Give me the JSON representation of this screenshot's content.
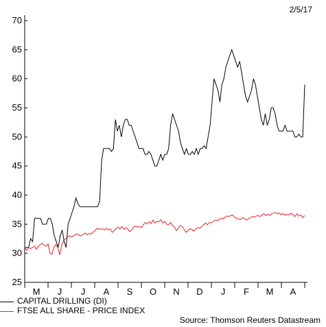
{
  "date_label": "2/5/17",
  "source_label": "Source: Thomson Reuters Datastream",
  "chart_data": {
    "type": "line",
    "ylim": [
      25,
      70
    ],
    "yticks": [
      25,
      30,
      35,
      40,
      45,
      50,
      55,
      60,
      65,
      70
    ],
    "months": [
      "M",
      "J",
      "J",
      "A",
      "S",
      "O",
      "N",
      "D",
      "J",
      "F",
      "M",
      "A"
    ],
    "legend_position": "bottom-left",
    "grid": false,
    "series": [
      {
        "name": "CAPITAL DRILLING (DI)",
        "color": "#000000",
        "values": [
          31,
          31,
          31,
          32.5,
          32,
          36,
          36,
          36,
          36,
          35,
          35,
          35,
          36,
          36,
          35,
          33,
          32,
          31,
          33,
          34,
          32,
          31,
          35,
          36,
          37,
          38,
          39.5,
          38.5,
          38,
          38,
          38,
          38,
          38,
          38,
          38,
          38,
          38,
          38,
          39,
          46,
          48,
          48,
          48,
          48,
          47.5,
          48,
          53,
          51,
          52,
          50,
          52,
          53,
          53,
          52,
          52,
          51,
          50,
          49,
          48,
          48,
          48,
          47,
          47,
          47.5,
          47,
          46,
          45,
          45,
          46,
          47,
          46,
          47,
          47,
          48,
          52,
          54,
          53,
          52,
          51,
          49,
          48,
          47,
          48,
          47,
          47,
          47.5,
          47,
          48,
          47,
          48,
          48,
          48.5,
          48,
          50,
          52,
          56,
          60,
          59,
          58,
          56,
          59,
          60,
          62,
          63,
          64,
          65,
          64,
          63,
          62,
          63,
          61,
          59,
          57,
          56,
          57,
          58,
          60,
          59,
          57,
          55,
          53,
          52,
          54,
          52,
          53,
          55,
          55,
          54,
          52,
          51,
          51,
          51,
          52,
          51,
          51,
          51,
          51,
          50,
          50,
          50.5,
          50,
          50,
          59
        ],
        "x_start_index": 0
      },
      {
        "name": "FTSE ALL SHARE - PRICE INDEX",
        "color": "#e8202a",
        "values": [
          31,
          30.5,
          31,
          30.8,
          31,
          31.2,
          30.7,
          31.2,
          31.5,
          31.7,
          31.4,
          31.2,
          31.6,
          30,
          29.8,
          31,
          31.5,
          31,
          29.7,
          31.4,
          32.2,
          32.5,
          32.8,
          33,
          32.8,
          33,
          33.2,
          33.3,
          33.1,
          33,
          33.2,
          33.5,
          33.2,
          33.4,
          33.3,
          33.6,
          33.8,
          34.2,
          34.3,
          34.1,
          34.2,
          34,
          34.3,
          34,
          34.2,
          33.6,
          33.9,
          34.3,
          34.5,
          34.2,
          34.6,
          34.1,
          34.4,
          34.2,
          33.7,
          34,
          34.5,
          34.7,
          34.5,
          34.6,
          34.4,
          34.9,
          35.3,
          35,
          35.4,
          35.1,
          35.7,
          35.2,
          35.5,
          35.4,
          35.8,
          35.2,
          35.5,
          35,
          34.9,
          35.3,
          34.8,
          34.5,
          33.9,
          34.3,
          34.8,
          34.6,
          34.1,
          33.6,
          33.9,
          34.2,
          34.1,
          33.8,
          34.2,
          34.4,
          34.3,
          34.6,
          34.9,
          35.2,
          34.9,
          35.3,
          35.2,
          35.5,
          35.7,
          35.6,
          35.8,
          36,
          35.9,
          36.2,
          36.4,
          36.3,
          36.5,
          36.6,
          36.2,
          36,
          35.9,
          35.8,
          36.1,
          36,
          35.7,
          35.9,
          36.1,
          36.3,
          36.2,
          36.4,
          36.5,
          36.3,
          36.6,
          36.8,
          36.5,
          36.7,
          36.5,
          36.8,
          36.9,
          37,
          36.8,
          36.9,
          36.6,
          36.8,
          36.5,
          36.7,
          36.6,
          36.9,
          36.6,
          36.3,
          36.8,
          36.4,
          36.6,
          36.1,
          36.5
        ]
      }
    ]
  }
}
